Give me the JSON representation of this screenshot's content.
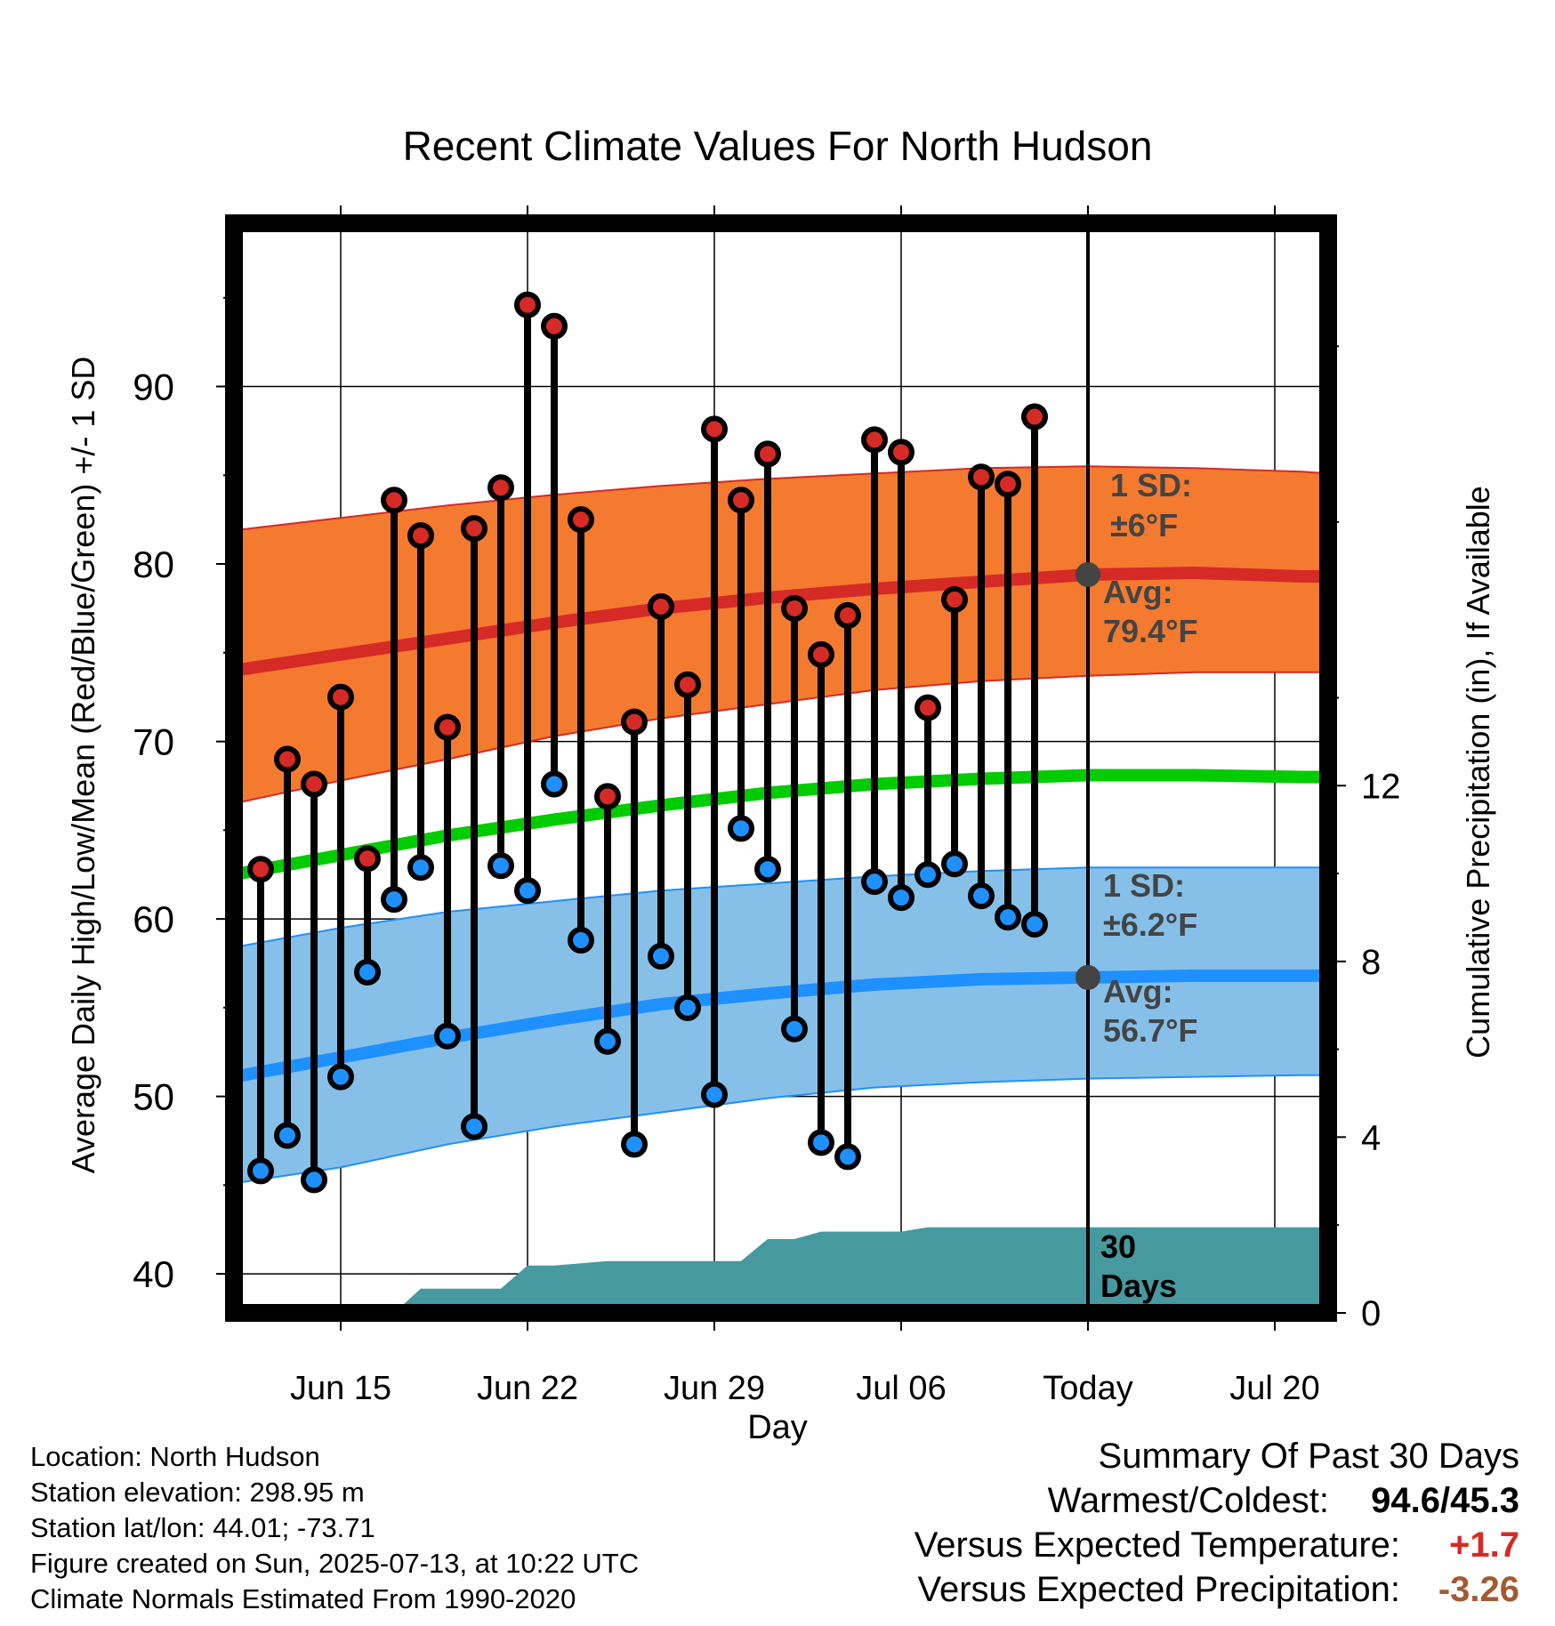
{
  "chart_data": {
    "type": "line",
    "title": "Recent Climate Values For North Hudson",
    "xlabel": "Day",
    "ylabel": "Average Daily High/Low/Mean (Red/Blue/Green) +/- 1 SD",
    "y2label": "Cumulative Precipitation (in), If Available",
    "x_tick_labels": [
      "Jun 15",
      "Jun 22",
      "Jun 29",
      "Jul 06",
      "Today",
      "Jul 20"
    ],
    "y_ticks": [
      "40",
      "50",
      "60",
      "70",
      "80",
      "90"
    ],
    "y2_ticks": [
      "0",
      "4",
      "8",
      "12"
    ],
    "ylim": [
      37.8,
      99.2
    ],
    "y2lim": [
      0,
      24.8
    ],
    "x_range_days": [
      "2025-06-11",
      "2025-07-22"
    ],
    "today": "2025-07-13",
    "colors": {
      "high": "#d62a26",
      "high_band": "#f47a2f",
      "low": "#1e90ff",
      "low_band": "#86c0e8",
      "mean": "#00cc00",
      "precip": "#46999f",
      "marker_today": "#444444"
    },
    "observed": {
      "dates": [
        "2025-06-12",
        "2025-06-13",
        "2025-06-14",
        "2025-06-15",
        "2025-06-16",
        "2025-06-17",
        "2025-06-18",
        "2025-06-19",
        "2025-06-20",
        "2025-06-21",
        "2025-06-22",
        "2025-06-23",
        "2025-06-24",
        "2025-06-25",
        "2025-06-26",
        "2025-06-27",
        "2025-06-28",
        "2025-06-29",
        "2025-06-30",
        "2025-07-01",
        "2025-07-02",
        "2025-07-03",
        "2025-07-04",
        "2025-07-05",
        "2025-07-06",
        "2025-07-07",
        "2025-07-08",
        "2025-07-09",
        "2025-07-10",
        "2025-07-11",
        "2025-07-12"
      ],
      "high": [
        62.8,
        69.0,
        67.6,
        72.5,
        63.4,
        83.6,
        81.6,
        70.8,
        82.0,
        84.3,
        94.6,
        93.4,
        82.5,
        66.9,
        71.1,
        77.6,
        73.2,
        87.6,
        83.6,
        86.2,
        77.5,
        74.9,
        77.1,
        87.0,
        86.3,
        71.9,
        78.0,
        84.9,
        84.5,
        88.3,
        null
      ],
      "low": [
        45.8,
        47.8,
        45.3,
        51.1,
        57.0,
        61.1,
        62.9,
        53.4,
        48.3,
        63.0,
        61.6,
        67.6,
        58.8,
        53.1,
        47.3,
        57.9,
        55.0,
        50.1,
        65.1,
        62.8,
        53.8,
        47.4,
        46.6,
        62.1,
        61.2,
        62.5,
        63.1,
        61.3,
        60.1,
        59.7,
        null
      ]
    },
    "normals": {
      "dates": [
        "2025-06-11",
        "2025-06-15",
        "2025-06-19",
        "2025-06-23",
        "2025-06-27",
        "2025-07-01",
        "2025-07-05",
        "2025-07-09",
        "2025-07-13",
        "2025-07-17",
        "2025-07-21",
        "2025-07-22"
      ],
      "high_avg": [
        74.0,
        74.9,
        75.8,
        76.7,
        77.5,
        78.1,
        78.6,
        79.0,
        79.4,
        79.5,
        79.3,
        79.3
      ],
      "high_upper": [
        81.9,
        82.6,
        83.3,
        83.9,
        84.4,
        84.8,
        85.1,
        85.4,
        85.5,
        85.4,
        85.2,
        85.1
      ],
      "high_lower": [
        66.5,
        67.8,
        69.0,
        70.3,
        71.3,
        72.1,
        72.9,
        73.4,
        73.7,
        73.9,
        73.9,
        73.9
      ],
      "mean_avg": [
        62.5,
        63.6,
        64.7,
        65.6,
        66.4,
        67.1,
        67.6,
        67.9,
        68.1,
        68.1,
        68.0,
        68.0
      ],
      "low_avg": [
        51.1,
        52.2,
        53.3,
        54.3,
        55.2,
        55.8,
        56.3,
        56.6,
        56.7,
        56.8,
        56.8,
        56.8
      ],
      "low_upper": [
        58.4,
        59.5,
        60.4,
        61.0,
        61.6,
        62.0,
        62.4,
        62.7,
        62.9,
        62.9,
        62.9,
        62.9
      ],
      "low_lower": [
        45.1,
        46.0,
        47.3,
        48.3,
        49.1,
        49.9,
        50.5,
        50.8,
        51.0,
        51.1,
        51.2,
        51.2
      ]
    },
    "precip_cumulative": {
      "dates": [
        "2025-06-11",
        "2025-06-17",
        "2025-06-18",
        "2025-06-20",
        "2025-06-21",
        "2025-06-22",
        "2025-06-23",
        "2025-06-25",
        "2025-06-30",
        "2025-07-01",
        "2025-07-02",
        "2025-07-03",
        "2025-07-06",
        "2025-07-07",
        "2025-07-13",
        "2025-07-22"
      ],
      "values": [
        0,
        0,
        0.55,
        0.55,
        0.55,
        1.08,
        1.08,
        1.18,
        1.18,
        1.68,
        1.68,
        1.85,
        1.85,
        1.95,
        1.95,
        1.95
      ]
    },
    "annotations": {
      "high_sd_line1": "1 SD:",
      "high_sd_line2": "±6°F",
      "high_avg_line1": "Avg:",
      "high_avg_line2": "79.4°F",
      "low_sd_line1": "1 SD:",
      "low_sd_line2": "±6.2°F",
      "low_avg_line1": "Avg:",
      "low_avg_line2": "56.7°F",
      "window_line1": "30",
      "window_line2": "Days",
      "high_avg_value": 79.4,
      "low_avg_value": 56.7
    }
  },
  "info": {
    "location": "Location: North Hudson",
    "elevation": "Station elevation: 298.95 m",
    "latlon": "Station lat/lon: 44.01; -73.71",
    "created": "Figure created on Sun, 2025-07-13, at 10:22 UTC",
    "normals": "Climate Normals Estimated From 1990-2020"
  },
  "summary": {
    "title": "Summary Of Past 30 Days",
    "warm_cold_label": "Warmest/Coldest:",
    "warm_cold_value": "94.6/45.3",
    "temp_label": "Versus Expected Temperature:",
    "temp_value": "+1.7",
    "precip_label": "Versus Expected Precipitation:",
    "precip_value": "-3.26"
  }
}
